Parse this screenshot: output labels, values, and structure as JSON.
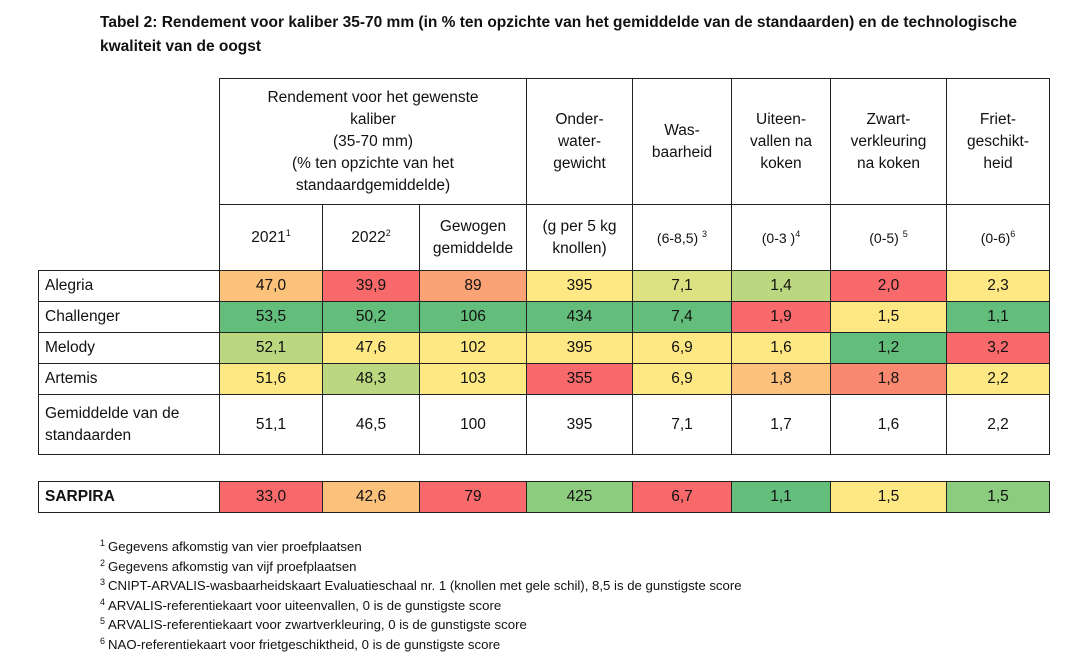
{
  "title": "Tabel 2: Rendement voor kaliber 35-70 mm (in % ten opzichte van het gemiddelde van de standaarden) en de technologische kwaliteit van de oogst",
  "colors": {
    "green_dark": "#63be7b",
    "green_mid": "#8ccc7e",
    "green_light": "#bbd880",
    "yellow_green": "#dce282",
    "yellow": "#fee883",
    "orange_light": "#fcc27b",
    "orange": "#fba276",
    "red_orange": "#f98870",
    "red": "#f8696b"
  },
  "table": {
    "header": {
      "rendement_group": [
        "Rendement voor het gewenste",
        "kaliber",
        "(35-70 mm)",
        "(% ten opzichte van het",
        "standaardgemiddelde)"
      ],
      "onderwater": [
        "Onder-",
        "water-",
        "gewicht"
      ],
      "was": [
        "Was-",
        "baarheid"
      ],
      "uiteen": [
        "Uiteen-",
        "vallen na",
        "koken"
      ],
      "zwart": [
        "Zwart-",
        "verkleuring",
        "na koken"
      ],
      "friet": [
        "Friet-",
        "geschikt-",
        "heid"
      ]
    },
    "subheader": {
      "y2021": "2021",
      "y2021_sup": "1",
      "y2022": "2022",
      "y2022_sup": "2",
      "gewogen": [
        "Gewogen",
        "gemiddelde"
      ],
      "onderwater_unit": [
        "(g per 5 kg",
        "knollen)"
      ],
      "was_scale": "(6-8,5)",
      "was_sup": "3",
      "uiteen_scale": "(0-3 )",
      "uiteen_sup": "4",
      "zwart_scale": "(0-5)",
      "zwart_sup": "5",
      "friet_scale": "(0-6)",
      "friet_sup": "6"
    },
    "rows": [
      {
        "name": "Alegria",
        "values": [
          "47,0",
          "39,9",
          "89",
          "395",
          "7,1",
          "1,4",
          "2,0",
          "2,3"
        ]
      },
      {
        "name": "Challenger",
        "values": [
          "53,5",
          "50,2",
          "106",
          "434",
          "7,4",
          "1,9",
          "1,5",
          "1,1"
        ]
      },
      {
        "name": "Melody",
        "values": [
          "52,1",
          "47,6",
          "102",
          "395",
          "6,9",
          "1,6",
          "1,2",
          "3,2"
        ]
      },
      {
        "name": "Artemis",
        "values": [
          "51,6",
          "48,3",
          "103",
          "355",
          "6,9",
          "1,8",
          "1,8",
          "2,2"
        ]
      },
      {
        "name": "Gemiddelde van de standaarden",
        "values": [
          "51,1",
          "46,5",
          "100",
          "395",
          "7,1",
          "1,7",
          "1,6",
          "2,2"
        ]
      }
    ],
    "sarpira": {
      "name": "SARPIRA",
      "values": [
        "33,0",
        "42,6",
        "79",
        "425",
        "6,7",
        "1,1",
        "1,5",
        "1,5"
      ]
    }
  },
  "footnotes": [
    {
      "mark": "1",
      "text": "Gegevens afkomstig van vier proefplaatsen"
    },
    {
      "mark": "2",
      "text": "Gegevens afkomstig van vijf proefplaatsen"
    },
    {
      "mark": "3",
      "text": "CNIPT-ARVALIS-wasbaarheidskaart Evaluatieschaal nr. 1 (knollen met gele schil), 8,5 is de gunstigste score"
    },
    {
      "mark": "4",
      "text": "ARVALIS-referentiekaart voor uiteenvallen, 0 is de gunstigste score"
    },
    {
      "mark": "5",
      "text": "ARVALIS-referentiekaart voor zwartverkleuring, 0 is de gunstigste score"
    },
    {
      "mark": "6",
      "text": "NAO-referentiekaart voor frietgeschiktheid, 0 is de gunstigste score"
    }
  ]
}
